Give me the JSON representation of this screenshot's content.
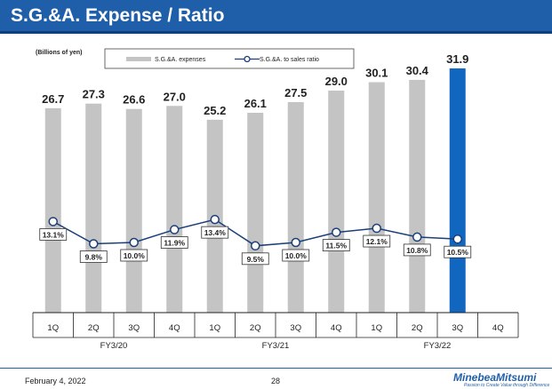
{
  "header": {
    "title": "S.G.&A. Expense / Ratio"
  },
  "footer": {
    "date": "February 4, 2022",
    "page": "28",
    "brand": "MinebeaMitsumi",
    "tagline": "Passion to Create Value through Difference"
  },
  "colors": {
    "header": "#1f5faa",
    "bar": "#c4c4c4",
    "highlight": "#1167bf",
    "line": "#1a3f7a"
  },
  "chart_data": {
    "type": "bar",
    "unit_label": "(Billions of yen)",
    "legend": [
      "S.G.&A. expenses",
      "S.G.&A. to sales ratio"
    ],
    "categories": [
      "1Q",
      "2Q",
      "3Q",
      "4Q",
      "1Q",
      "2Q",
      "3Q",
      "4Q",
      "1Q",
      "2Q",
      "3Q",
      "4Q"
    ],
    "groups": [
      {
        "label": "FY3/20",
        "span": 4
      },
      {
        "label": "FY3/21",
        "span": 4
      },
      {
        "label": "FY3/22",
        "span": 4
      }
    ],
    "series": [
      {
        "name": "S.G.&A. expenses",
        "kind": "bar",
        "values": [
          26.7,
          27.3,
          26.6,
          27.0,
          25.2,
          26.1,
          27.5,
          29.0,
          30.1,
          30.4,
          31.9,
          null
        ],
        "labels": [
          "26.7",
          "27.3",
          "26.6",
          "27.0",
          "25.2",
          "26.1",
          "27.5",
          "29.0",
          "30.1",
          "30.4",
          "31.9",
          ""
        ],
        "highlight_index": 10
      },
      {
        "name": "S.G.&A. to sales ratio",
        "kind": "line",
        "values": [
          13.1,
          9.8,
          10.0,
          11.9,
          13.4,
          9.5,
          10.0,
          11.5,
          12.1,
          10.8,
          10.5,
          null
        ],
        "labels": [
          "13.1%",
          "9.8%",
          "10.0%",
          "11.9%",
          "13.4%",
          "9.5%",
          "10.0%",
          "11.5%",
          "12.1%",
          "10.8%",
          "10.5%",
          ""
        ]
      }
    ],
    "ylim": [
      0,
      32
    ]
  }
}
